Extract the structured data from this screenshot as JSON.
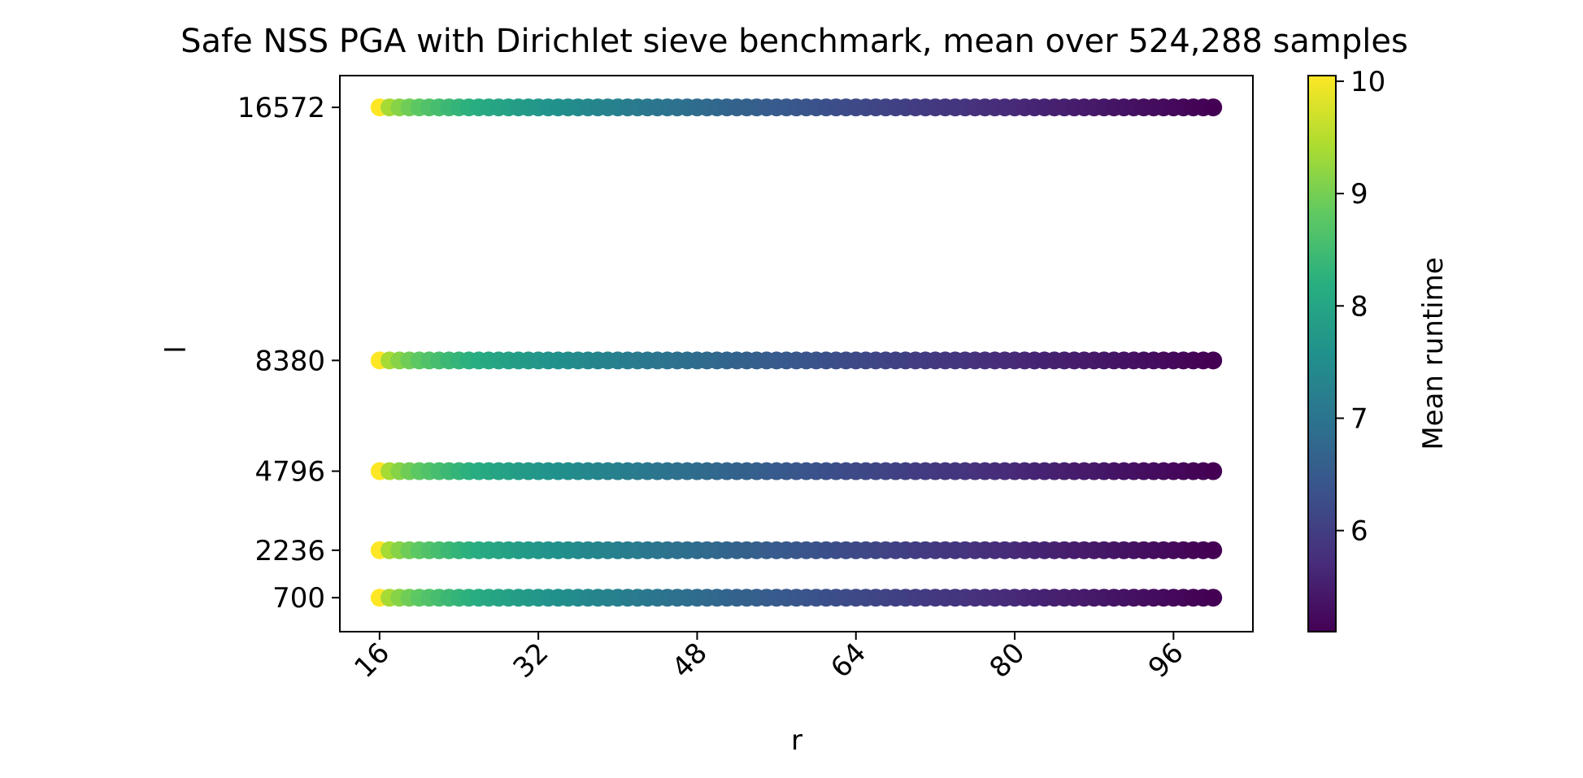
{
  "chart_data": {
    "type": "scatter",
    "title": "Safe NSS PGA with Dirichlet sieve benchmark, mean over 524,288 samples",
    "xlabel": "r",
    "ylabel": "l",
    "x_range": [
      16,
      100
    ],
    "x_step": 1,
    "xlim": [
      12,
      104
    ],
    "ylim": [
      -400,
      17600
    ],
    "x_ticks": [
      "16",
      "32",
      "48",
      "64",
      "80",
      "96"
    ],
    "y_ticks": [
      "700",
      "2236",
      "4796",
      "8380",
      "16572"
    ],
    "l_values": [
      700,
      2236,
      4796,
      8380,
      16572
    ],
    "runtime_model": {
      "description_free": true,
      "r_min": 16,
      "r_max": 100,
      "v_max": 10.05,
      "v_min": 5.1,
      "gamma": 0.45
    },
    "colorbar": {
      "label": "Mean runtime",
      "min": 5.1,
      "max": 10.05,
      "ticks": [
        "6",
        "7",
        "8",
        "9",
        "10"
      ],
      "colormap": "viridis"
    },
    "grid": false,
    "legend": "none"
  }
}
